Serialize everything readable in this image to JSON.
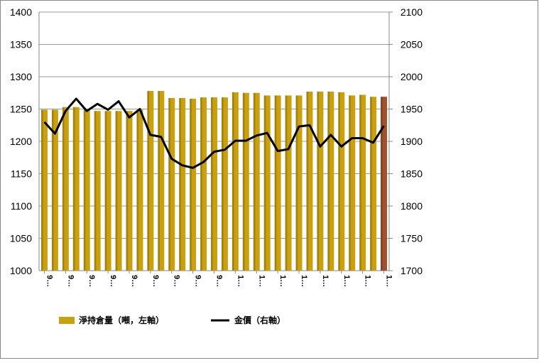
{
  "chart_data": {
    "type": "bar-line",
    "categories": [
      "9…",
      null,
      "9…",
      null,
      "9…",
      null,
      "9…",
      null,
      "9…",
      null,
      "9…",
      null,
      "9…",
      null,
      "9…",
      null,
      "9…",
      null,
      "1…",
      null,
      "1…",
      null,
      "1…",
      null,
      "1…",
      null,
      "1…",
      null,
      "1…",
      null,
      "1…",
      null,
      "1…"
    ],
    "series": [
      {
        "name": "淨持倉量（噸，左軸）",
        "color": "#c9a00f",
        "colors": [
          "#c9a00f",
          "#c9a00f",
          "#c9a00f",
          "#c9a00f",
          "#c9a00f",
          "#c9a00f",
          "#c9a00f",
          "#c9a00f",
          "#c9a00f",
          "#c9a00f",
          "#c9a00f",
          "#c9a00f",
          "#c9a00f",
          "#c9a00f",
          "#c9a00f",
          "#c9a00f",
          "#c9a00f",
          "#c9a00f",
          "#c9a00f",
          "#c9a00f",
          "#c9a00f",
          "#c9a00f",
          "#c9a00f",
          "#c9a00f",
          "#c9a00f",
          "#c9a00f",
          "#c9a00f",
          "#c9a00f",
          "#c9a00f",
          "#c9a00f",
          "#c9a00f",
          "#c9a00f",
          "#a0522d"
        ],
        "values": [
          1249,
          1249,
          1253,
          1253,
          1249,
          1247,
          1247,
          1247,
          1247,
          1249,
          1278,
          1278,
          1267,
          1267,
          1266,
          1268,
          1268,
          1268,
          1276,
          1275,
          1275,
          1271,
          1271,
          1271,
          1271,
          1277,
          1277,
          1277,
          1276,
          1271,
          1272,
          1269,
          1269
        ]
      },
      {
        "name": "金價（右軸）",
        "color": "#000000",
        "axis": "y2",
        "values": [
          1930,
          1912,
          1947,
          1966,
          1947,
          1958,
          1949,
          1962,
          1937,
          1950,
          1910,
          1907,
          1873,
          1863,
          1859,
          1868,
          1884,
          1887,
          1901,
          1901,
          1909,
          1913,
          1885,
          1888,
          1923,
          1925,
          1892,
          1910,
          1892,
          1905,
          1905,
          1898,
          1924
        ]
      }
    ],
    "ylim": [
      1000,
      1400
    ],
    "yticks": [
      1000,
      1050,
      1100,
      1150,
      1200,
      1250,
      1300,
      1350,
      1400
    ],
    "y2lim": [
      1700,
      2100
    ],
    "y2ticks": [
      1700,
      1750,
      1800,
      1850,
      1900,
      1950,
      2000,
      2050,
      2100
    ],
    "grid": true
  }
}
